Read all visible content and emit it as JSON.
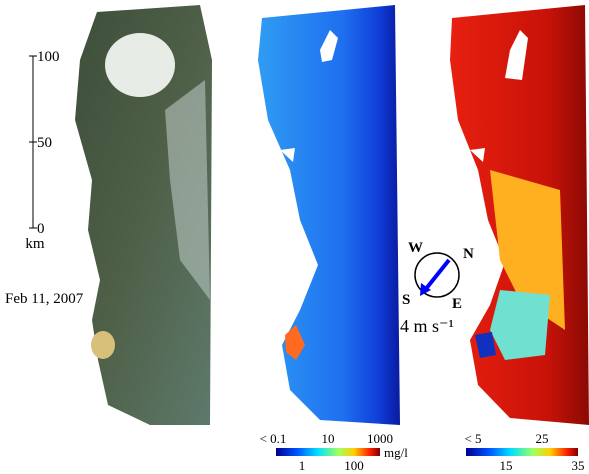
{
  "scale_bar": {
    "ticks": [
      0,
      50,
      100
    ],
    "unit": "km"
  },
  "date": "Feb 11, 2007",
  "compass": {
    "north": "N",
    "east": "E",
    "south": "S",
    "west": "W"
  },
  "wind_speed": "4 m s⁻¹",
  "colorbars": [
    {
      "top_labels": [
        "< 0.1",
        "10",
        "1000"
      ],
      "bottom_labels": [
        "1",
        "100"
      ],
      "unit": "mg/l"
    },
    {
      "top_labels": [
        "< 5",
        "25"
      ],
      "bottom_labels": [
        "15",
        "35"
      ]
    }
  ]
}
